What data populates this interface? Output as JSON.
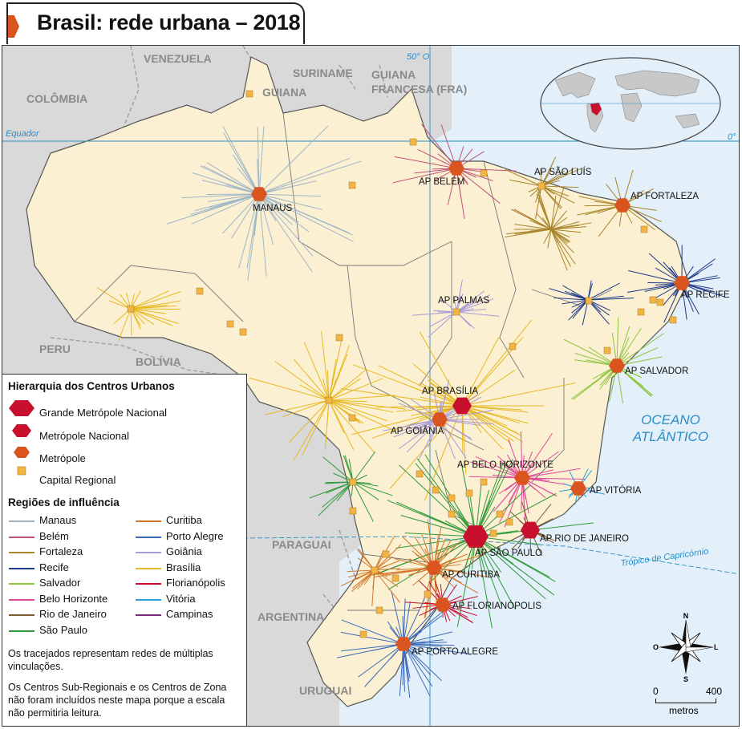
{
  "title": "Brasil: rede urbana – 2018",
  "countries": [
    {
      "key": "venezuela",
      "label": "VENEZUELA"
    },
    {
      "key": "colombia",
      "label": "COLÔMBIA"
    },
    {
      "key": "guiana",
      "label": "GUIANA"
    },
    {
      "key": "suriname",
      "label": "SURINAME"
    },
    {
      "key": "guiana_fr_1",
      "label": "GUIANA"
    },
    {
      "key": "guiana_fr_2",
      "label": "FRANCESA (FRA)"
    },
    {
      "key": "peru",
      "label": "PERU"
    },
    {
      "key": "bolivia",
      "label": "BOLÍVIA"
    },
    {
      "key": "paraguai",
      "label": "PARAGUAI"
    },
    {
      "key": "argentina",
      "label": "ARGENTINA"
    },
    {
      "key": "uruguai",
      "label": "URUGUAI"
    }
  ],
  "ocean": {
    "line1": "OCEANO",
    "line2": "ATLÂNTICO"
  },
  "geo_lines": {
    "equador": "Equador",
    "zero": "0°",
    "meridian": "50° O",
    "tropico": "Trópico de Capricórnio"
  },
  "cities": [
    {
      "key": "manaus",
      "label": "MANAUS",
      "type": "metropole"
    },
    {
      "key": "belem",
      "label": "AP BELÉM",
      "type": "metropole"
    },
    {
      "key": "sao_luis",
      "label": "AP SÃO LUÍS",
      "type": "capital"
    },
    {
      "key": "fortaleza",
      "label": "AP FORTALEZA",
      "type": "metropole"
    },
    {
      "key": "recife",
      "label": "AP RECIFE",
      "type": "metropole"
    },
    {
      "key": "palmas",
      "label": "AP PALMAS",
      "type": "capital"
    },
    {
      "key": "salvador",
      "label": "AP SALVADOR",
      "type": "metropole"
    },
    {
      "key": "brasilia",
      "label": "AP BRASÍLIA",
      "type": "metropole_nacional"
    },
    {
      "key": "goiania",
      "label": "AP GOIÂNIA",
      "type": "metropole"
    },
    {
      "key": "belo_horizonte",
      "label": "AP BELO HORIZONTE",
      "type": "metropole"
    },
    {
      "key": "vitoria",
      "label": "AP VITÓRIA",
      "type": "metropole"
    },
    {
      "key": "rio",
      "label": "AP RIO DE JANEIRO",
      "type": "metropole_nacional"
    },
    {
      "key": "sao_paulo",
      "label": "AP SÃO PAULO",
      "type": "grande_metropole"
    },
    {
      "key": "curitiba",
      "label": "AP CURITIBA",
      "type": "metropole"
    },
    {
      "key": "florianopolis",
      "label": "AP FLORIANÓPOLIS",
      "type": "metropole"
    },
    {
      "key": "porto_alegre",
      "label": "AP PORTO ALEGRE",
      "type": "metropole"
    }
  ],
  "legend": {
    "hierarchy_title": "Hierarquia dos Centros Urbanos",
    "hierarchy": [
      {
        "label": "Grande Metrópole Nacional",
        "color": "#c8102e"
      },
      {
        "label": "Metrópole Nacional",
        "color": "#c8102e"
      },
      {
        "label": "Metrópole",
        "color": "#d9541e"
      },
      {
        "label": "Capital Regional",
        "color": "#f2b544"
      }
    ],
    "regions_title": "Regiões de influência",
    "regions_col1": [
      {
        "label": "Manaus",
        "color": "#9fb6c8"
      },
      {
        "label": "Belém",
        "color": "#c0527a"
      },
      {
        "label": "Fortaleza",
        "color": "#a8842a"
      },
      {
        "label": "Recife",
        "color": "#1f3a8a"
      },
      {
        "label": "Salvador",
        "color": "#8cc63f"
      },
      {
        "label": "Belo Horizonte",
        "color": "#e0489b"
      },
      {
        "label": "Rio de Janeiro",
        "color": "#7a5a2e"
      },
      {
        "label": "São Paulo",
        "color": "#2e9a3a"
      }
    ],
    "regions_col2": [
      {
        "label": "Curitiba",
        "color": "#d2772a"
      },
      {
        "label": "Porto Alegre",
        "color": "#3a6ab8"
      },
      {
        "label": "Goiânia",
        "color": "#a99ad8"
      },
      {
        "label": "Brasília",
        "color": "#e8b820"
      },
      {
        "label": "Florianópolis",
        "color": "#c8102e"
      },
      {
        "label": "Vitória",
        "color": "#2aa0d8"
      },
      {
        "label": "Campinas",
        "color": "#7a2a7a"
      }
    ],
    "note1": "Os tracejados representam redes de múltiplas vinculações.",
    "note2": "Os Centros Sub-Regionais e os Centros de Zona não foram incluídos neste mapa porque a escala não permitiria leitura."
  },
  "compass": {
    "n": "N",
    "s": "S",
    "l": "L",
    "o": "O"
  },
  "scale": {
    "zero": "0",
    "max": "400",
    "unit": "metros"
  },
  "colors": {
    "land_brazil": "#fbf0d2",
    "land_other": "#d9d9d9",
    "sea": "#e3eff9",
    "metropole": "#d9541e",
    "metropole_nacional": "#c8102e",
    "capital": "#f2b544",
    "geo_line": "#2a8ec8"
  }
}
